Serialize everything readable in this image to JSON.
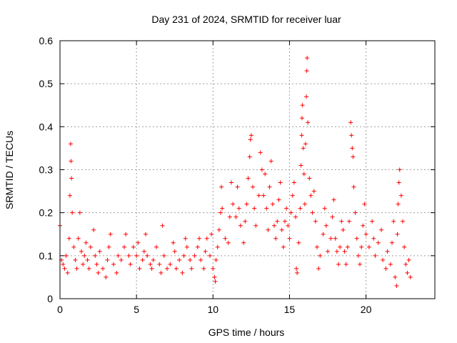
{
  "chart_data": {
    "type": "scatter",
    "title": "Day 231 of 2024, SRMTID for receiver luar",
    "xlabel": "GPS time / hours",
    "ylabel": "SRMTID / TECUs",
    "xlim": [
      0,
      24.5
    ],
    "ylim": [
      0,
      0.6
    ],
    "xticks": [
      0,
      5,
      10,
      15,
      20
    ],
    "xtick_labels": [
      "0",
      "5",
      "10",
      "15",
      "20"
    ],
    "yticks": [
      0,
      0.1,
      0.2,
      0.3,
      0.4,
      0.5,
      0.6
    ],
    "ytick_labels": [
      "0",
      "0.1",
      "0.2",
      "0.3",
      "0.4",
      "0.5",
      "0.6"
    ],
    "grid": true,
    "marker": "+",
    "color": "#ff0000",
    "series": [
      {
        "name": "SRMTID",
        "points": [
          [
            0.0,
            0.17
          ],
          [
            0.1,
            0.09
          ],
          [
            0.2,
            0.08
          ],
          [
            0.3,
            0.07
          ],
          [
            0.4,
            0.1
          ],
          [
            0.5,
            0.06
          ],
          [
            0.6,
            0.14
          ],
          [
            0.65,
            0.24
          ],
          [
            0.7,
            0.36
          ],
          [
            0.72,
            0.32
          ],
          [
            0.75,
            0.28
          ],
          [
            0.8,
            0.2
          ],
          [
            0.9,
            0.12
          ],
          [
            1.0,
            0.09
          ],
          [
            1.1,
            0.07
          ],
          [
            1.2,
            0.14
          ],
          [
            1.3,
            0.2
          ],
          [
            1.4,
            0.11
          ],
          [
            1.5,
            0.08
          ],
          [
            1.6,
            0.1
          ],
          [
            1.7,
            0.13
          ],
          [
            1.8,
            0.09
          ],
          [
            1.9,
            0.07
          ],
          [
            2.0,
            0.12
          ],
          [
            2.2,
            0.16
          ],
          [
            2.3,
            0.1
          ],
          [
            2.4,
            0.08
          ],
          [
            2.5,
            0.06
          ],
          [
            2.6,
            0.11
          ],
          [
            2.8,
            0.07
          ],
          [
            3.0,
            0.05
          ],
          [
            3.1,
            0.09
          ],
          [
            3.2,
            0.12
          ],
          [
            3.3,
            0.15
          ],
          [
            3.5,
            0.08
          ],
          [
            3.7,
            0.06
          ],
          [
            3.8,
            0.1
          ],
          [
            4.0,
            0.09
          ],
          [
            4.2,
            0.12
          ],
          [
            4.3,
            0.15
          ],
          [
            4.5,
            0.1
          ],
          [
            4.6,
            0.08
          ],
          [
            4.8,
            0.12
          ],
          [
            5.0,
            0.1
          ],
          [
            5.1,
            0.13
          ],
          [
            5.2,
            0.07
          ],
          [
            5.4,
            0.09
          ],
          [
            5.5,
            0.11
          ],
          [
            5.6,
            0.15
          ],
          [
            5.7,
            0.1
          ],
          [
            5.9,
            0.08
          ],
          [
            6.0,
            0.07
          ],
          [
            6.1,
            0.09
          ],
          [
            6.3,
            0.12
          ],
          [
            6.5,
            0.08
          ],
          [
            6.6,
            0.06
          ],
          [
            6.7,
            0.17
          ],
          [
            6.8,
            0.1
          ],
          [
            7.0,
            0.07
          ],
          [
            7.2,
            0.08
          ],
          [
            7.4,
            0.13
          ],
          [
            7.5,
            0.11
          ],
          [
            7.6,
            0.07
          ],
          [
            7.8,
            0.09
          ],
          [
            8.0,
            0.06
          ],
          [
            8.1,
            0.1
          ],
          [
            8.2,
            0.14
          ],
          [
            8.3,
            0.12
          ],
          [
            8.5,
            0.09
          ],
          [
            8.6,
            0.07
          ],
          [
            8.8,
            0.1
          ],
          [
            9.0,
            0.12
          ],
          [
            9.1,
            0.14
          ],
          [
            9.2,
            0.09
          ],
          [
            9.4,
            0.07
          ],
          [
            9.5,
            0.11
          ],
          [
            9.6,
            0.14
          ],
          [
            9.8,
            0.1
          ],
          [
            9.9,
            0.15
          ],
          [
            10.0,
            0.07
          ],
          [
            10.1,
            0.05
          ],
          [
            10.15,
            0.04
          ],
          [
            10.2,
            0.09
          ],
          [
            10.3,
            0.12
          ],
          [
            10.4,
            0.16
          ],
          [
            10.5,
            0.2
          ],
          [
            10.55,
            0.26
          ],
          [
            10.6,
            0.21
          ],
          [
            10.8,
            0.14
          ],
          [
            11.0,
            0.13
          ],
          [
            11.1,
            0.19
          ],
          [
            11.2,
            0.27
          ],
          [
            11.3,
            0.22
          ],
          [
            11.5,
            0.19
          ],
          [
            11.6,
            0.26
          ],
          [
            11.7,
            0.21
          ],
          [
            11.8,
            0.17
          ],
          [
            12.0,
            0.13
          ],
          [
            12.1,
            0.18
          ],
          [
            12.2,
            0.22
          ],
          [
            12.3,
            0.28
          ],
          [
            12.4,
            0.33
          ],
          [
            12.45,
            0.37
          ],
          [
            12.5,
            0.38
          ],
          [
            12.6,
            0.26
          ],
          [
            12.7,
            0.21
          ],
          [
            12.8,
            0.17
          ],
          [
            13.0,
            0.24
          ],
          [
            13.1,
            0.34
          ],
          [
            13.2,
            0.3
          ],
          [
            13.3,
            0.24
          ],
          [
            13.4,
            0.29
          ],
          [
            13.5,
            0.21
          ],
          [
            13.6,
            0.16
          ],
          [
            13.7,
            0.26
          ],
          [
            13.8,
            0.32
          ],
          [
            13.9,
            0.22
          ],
          [
            14.0,
            0.17
          ],
          [
            14.1,
            0.14
          ],
          [
            14.2,
            0.18
          ],
          [
            14.3,
            0.23
          ],
          [
            14.4,
            0.27
          ],
          [
            14.5,
            0.16
          ],
          [
            14.6,
            0.12
          ],
          [
            14.7,
            0.18
          ],
          [
            14.8,
            0.21
          ],
          [
            14.9,
            0.17
          ],
          [
            15.0,
            0.14
          ],
          [
            15.1,
            0.2
          ],
          [
            15.2,
            0.24
          ],
          [
            15.3,
            0.27
          ],
          [
            15.4,
            0.19
          ],
          [
            15.45,
            0.07
          ],
          [
            15.5,
            0.06
          ],
          [
            15.6,
            0.13
          ],
          [
            15.7,
            0.21
          ],
          [
            15.75,
            0.31
          ],
          [
            15.8,
            0.38
          ],
          [
            15.82,
            0.42
          ],
          [
            15.85,
            0.45
          ],
          [
            15.9,
            0.35
          ],
          [
            15.95,
            0.29
          ],
          [
            16.0,
            0.22
          ],
          [
            16.05,
            0.36
          ],
          [
            16.1,
            0.47
          ],
          [
            16.13,
            0.53
          ],
          [
            16.15,
            0.56
          ],
          [
            16.2,
            0.41
          ],
          [
            16.3,
            0.28
          ],
          [
            16.4,
            0.24
          ],
          [
            16.5,
            0.2
          ],
          [
            16.6,
            0.25
          ],
          [
            16.7,
            0.18
          ],
          [
            16.8,
            0.12
          ],
          [
            16.9,
            0.07
          ],
          [
            17.0,
            0.1
          ],
          [
            17.2,
            0.15
          ],
          [
            17.3,
            0.21
          ],
          [
            17.4,
            0.17
          ],
          [
            17.5,
            0.11
          ],
          [
            17.7,
            0.14
          ],
          [
            17.8,
            0.19
          ],
          [
            17.9,
            0.23
          ],
          [
            18.0,
            0.14
          ],
          [
            18.1,
            0.11
          ],
          [
            18.2,
            0.08
          ],
          [
            18.3,
            0.12
          ],
          [
            18.4,
            0.18
          ],
          [
            18.5,
            0.16
          ],
          [
            18.6,
            0.11
          ],
          [
            18.7,
            0.08
          ],
          [
            18.8,
            0.12
          ],
          [
            18.9,
            0.18
          ],
          [
            19.0,
            0.41
          ],
          [
            19.05,
            0.38
          ],
          [
            19.1,
            0.35
          ],
          [
            19.15,
            0.33
          ],
          [
            19.2,
            0.26
          ],
          [
            19.3,
            0.2
          ],
          [
            19.4,
            0.14
          ],
          [
            19.5,
            0.1
          ],
          [
            19.6,
            0.08
          ],
          [
            19.7,
            0.12
          ],
          [
            19.8,
            0.17
          ],
          [
            19.9,
            0.22
          ],
          [
            20.0,
            0.15
          ],
          [
            20.2,
            0.12
          ],
          [
            20.4,
            0.18
          ],
          [
            20.5,
            0.14
          ],
          [
            20.6,
            0.1
          ],
          [
            20.8,
            0.13
          ],
          [
            21.0,
            0.16
          ],
          [
            21.1,
            0.09
          ],
          [
            21.3,
            0.07
          ],
          [
            21.4,
            0.11
          ],
          [
            21.6,
            0.08
          ],
          [
            21.7,
            0.13
          ],
          [
            21.8,
            0.18
          ],
          [
            21.9,
            0.05
          ],
          [
            22.0,
            0.03
          ],
          [
            22.05,
            0.15
          ],
          [
            22.1,
            0.22
          ],
          [
            22.15,
            0.27
          ],
          [
            22.2,
            0.3
          ],
          [
            22.3,
            0.24
          ],
          [
            22.4,
            0.18
          ],
          [
            22.5,
            0.12
          ],
          [
            22.6,
            0.08
          ],
          [
            22.7,
            0.06
          ],
          [
            22.8,
            0.09
          ],
          [
            22.9,
            0.05
          ]
        ]
      }
    ]
  }
}
